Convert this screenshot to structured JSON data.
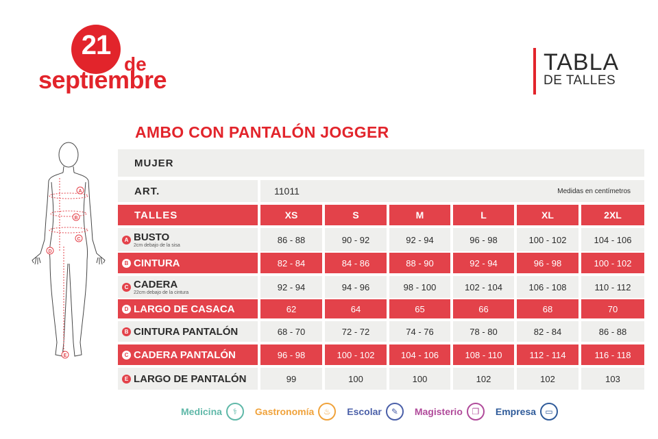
{
  "logo": {
    "number": "21",
    "de": "de",
    "month": "septiembre"
  },
  "header": {
    "title": "TABLA",
    "subtitle": "DE TALLES"
  },
  "product_title": "AMBO CON PANTALÓN JOGGER",
  "section": "MUJER",
  "art": {
    "label": "ART.",
    "number": "11011",
    "note": "Medidas en centímetros"
  },
  "sizes": {
    "label": "TALLES",
    "values": [
      "XS",
      "S",
      "M",
      "L",
      "XL",
      "2XL"
    ]
  },
  "figure_markers": [
    "A",
    "B",
    "C",
    "D",
    "E"
  ],
  "rows": [
    {
      "badge": "A",
      "label": "BUSTO",
      "sub": "2cm debajo de la sisa",
      "values": [
        "86 - 88",
        "90 - 92",
        "92 - 94",
        "96 - 98",
        "100 - 102",
        "104 - 106"
      ]
    },
    {
      "badge": "B",
      "label": "CINTURA",
      "sub": "",
      "values": [
        "82 - 84",
        "84 - 86",
        "88 - 90",
        "92 - 94",
        "96 - 98",
        "100 - 102"
      ]
    },
    {
      "badge": "C",
      "label": "CADERA",
      "sub": "22cm debajo de la cintura",
      "values": [
        "92 - 94",
        "94 - 96",
        "98 - 100",
        "102 - 104",
        "106 - 108",
        "110 - 112"
      ]
    },
    {
      "badge": "D",
      "label": "LARGO DE CASACA",
      "sub": "",
      "values": [
        "62",
        "64",
        "65",
        "66",
        "68",
        "70"
      ]
    },
    {
      "badge": "B",
      "label": "CINTURA PANTALÓN",
      "sub": "",
      "values": [
        "68 - 70",
        "72 - 72",
        "74 - 76",
        "78 - 80",
        "82 - 84",
        "86 - 88"
      ]
    },
    {
      "badge": "C",
      "label": "CADERA PANTALÓN",
      "sub": "",
      "values": [
        "96 - 98",
        "100 - 102",
        "104 - 106",
        "108 - 110",
        "112 - 114",
        "116 - 118"
      ]
    },
    {
      "badge": "E",
      "label": "LARGO DE PANTALÓN",
      "sub": "",
      "values": [
        "99",
        "100",
        "100",
        "102",
        "102",
        "103"
      ]
    }
  ],
  "footer": [
    {
      "label": "Medicina",
      "color": "#5fb8a8",
      "icon": "stethoscope-icon",
      "glyph": "⚕"
    },
    {
      "label": "Gastronomía",
      "color": "#f0a23a",
      "icon": "chef-hat-icon",
      "glyph": "♨"
    },
    {
      "label": "Escolar",
      "color": "#4a5fa8",
      "icon": "pencil-icon",
      "glyph": "✎"
    },
    {
      "label": "Magisterio",
      "color": "#b04a9a",
      "icon": "book-icon",
      "glyph": "❐"
    },
    {
      "label": "Empresa",
      "color": "#2e5a99",
      "icon": "briefcase-icon",
      "glyph": "▭"
    }
  ],
  "colors": {
    "brand_red": "#e2242b",
    "row_red": "#e3424a",
    "row_grey": "#efefed"
  }
}
